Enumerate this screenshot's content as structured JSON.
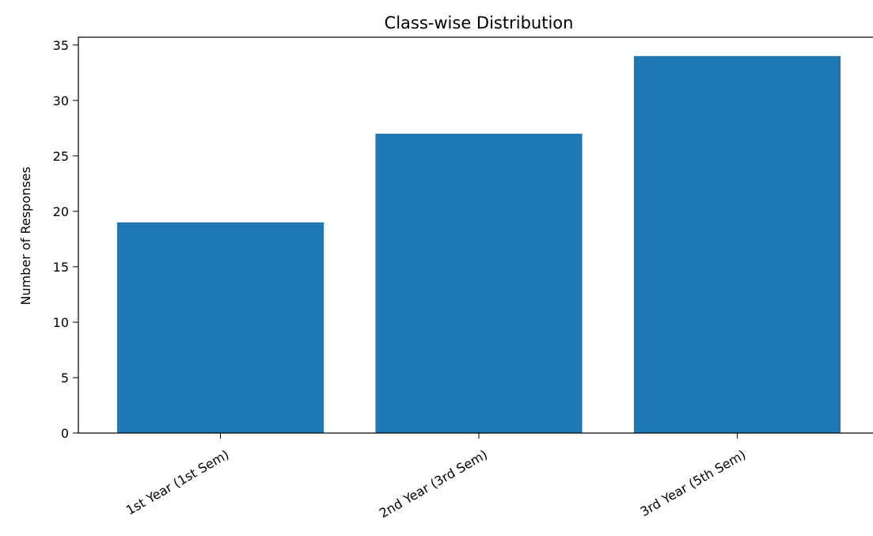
{
  "chart_data": {
    "type": "bar",
    "title": "Class-wise Distribution",
    "xlabel": "",
    "ylabel": "Number of Responses",
    "categories": [
      "1st Year (1st Sem)",
      "2nd Year (3rd Sem)",
      "3rd Year (5th Sem)"
    ],
    "values": [
      19,
      27,
      34
    ],
    "ylim": [
      0,
      35.7
    ],
    "yticks": [
      "0",
      "5",
      "10",
      "15",
      "20",
      "25",
      "30",
      "35"
    ],
    "grid": false,
    "bar_color": "#1f77b4"
  }
}
